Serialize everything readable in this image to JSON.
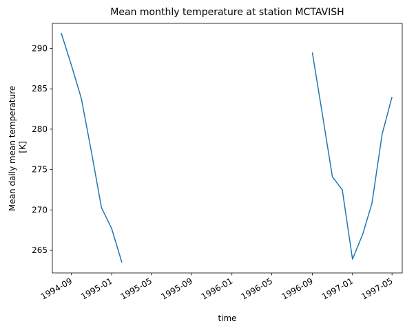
{
  "chart_data": {
    "type": "line",
    "title": "Mean monthly temperature at station MCTAVISH",
    "xlabel": "time",
    "ylabel_lines": [
      "Mean daily mean temperature",
      "[K]"
    ],
    "xlim": [
      "1994-07-05",
      "1997-06-01"
    ],
    "ylim": [
      262.2,
      293.1
    ],
    "x_ticks": [
      "1994-09",
      "1995-01",
      "1995-05",
      "1995-09",
      "1996-01",
      "1996-05",
      "1996-09",
      "1997-01",
      "1997-05"
    ],
    "y_ticks": [
      265,
      270,
      275,
      280,
      285,
      290
    ],
    "grid": false,
    "line_color": "#1f77b4",
    "segments": [
      {
        "x": [
          "1994-08-01",
          "1994-09-01",
          "1994-10-01",
          "1994-11-01",
          "1994-12-01",
          "1995-01-01",
          "1995-02-01"
        ],
        "y": [
          291.9,
          287.9,
          283.8,
          277.1,
          270.3,
          267.7,
          263.5
        ]
      },
      {
        "x": [
          "1996-09-01",
          "1996-10-01",
          "1996-11-01",
          "1996-12-01",
          "1997-01-01",
          "1997-02-01",
          "1997-03-01",
          "1997-04-01",
          "1997-05-01"
        ],
        "y": [
          289.5,
          282.0,
          274.1,
          272.5,
          263.9,
          267.0,
          270.8,
          279.4,
          284.0
        ]
      }
    ]
  }
}
